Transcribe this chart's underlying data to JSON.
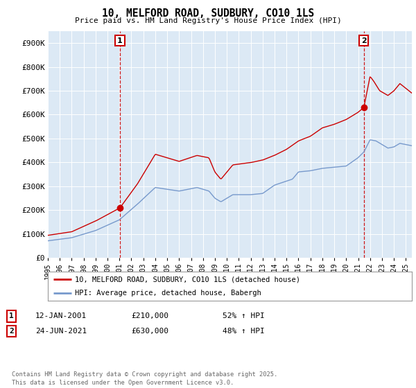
{
  "title": "10, MELFORD ROAD, SUDBURY, CO10 1LS",
  "subtitle": "Price paid vs. HM Land Registry's House Price Index (HPI)",
  "ylabel_ticks": [
    "£0",
    "£100K",
    "£200K",
    "£300K",
    "£400K",
    "£500K",
    "£600K",
    "£700K",
    "£800K",
    "£900K"
  ],
  "ytick_values": [
    0,
    100000,
    200000,
    300000,
    400000,
    500000,
    600000,
    700000,
    800000,
    900000
  ],
  "ylim": [
    0,
    950000
  ],
  "xlim_start": 1995.0,
  "xlim_end": 2025.5,
  "sale1_x": 2001.04,
  "sale1_y": 210000,
  "sale1_label": "1",
  "sale2_x": 2021.48,
  "sale2_y": 630000,
  "sale2_label": "2",
  "red_color": "#cc0000",
  "blue_color": "#7799cc",
  "plot_bg_color": "#dce9f5",
  "dashed_color": "#cc0000",
  "legend_label_red": "10, MELFORD ROAD, SUDBURY, CO10 1LS (detached house)",
  "legend_label_blue": "HPI: Average price, detached house, Babergh",
  "footnote": "Contains HM Land Registry data © Crown copyright and database right 2025.\nThis data is licensed under the Open Government Licence v3.0.",
  "background_color": "#ffffff",
  "grid_color": "#ffffff",
  "xtick_years": [
    "1995",
    "1996",
    "1997",
    "1998",
    "1999",
    "2000",
    "2001",
    "2002",
    "2003",
    "2004",
    "2005",
    "2006",
    "2007",
    "2008",
    "2009",
    "2010",
    "2011",
    "2012",
    "2013",
    "2014",
    "2015",
    "2016",
    "2017",
    "2018",
    "2019",
    "2020",
    "2021",
    "2022",
    "2023",
    "2024",
    "2025"
  ]
}
